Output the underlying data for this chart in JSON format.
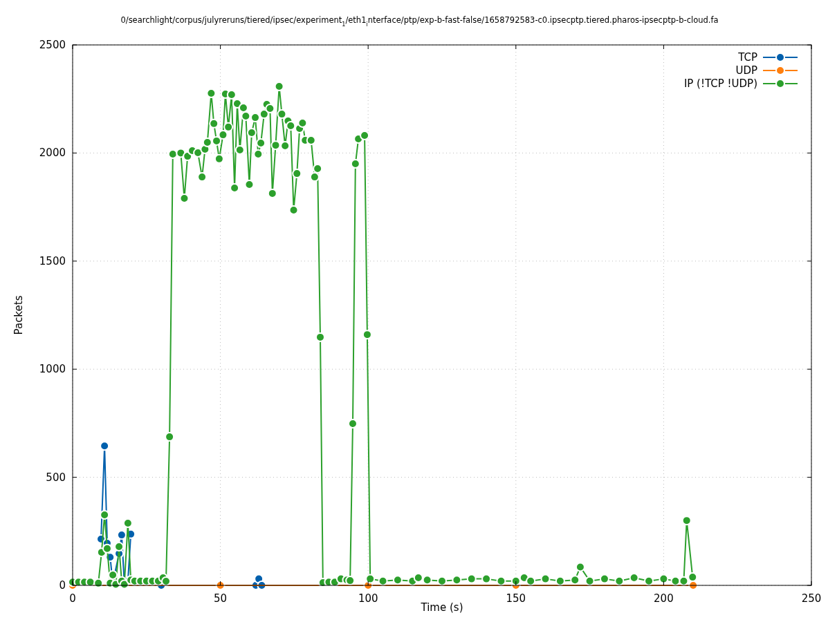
{
  "chart_data": {
    "type": "line",
    "title": "0/searchlight/corpus/julyreruns/tiered/ipsec/experiment$_{1}$/eth1$_{i}$nterface/ptp/exp-b-fast-false/1658792583-c0.ipsecptp.tiered.pharos-ipsecptp-b-cloud.fa",
    "xlabel": "Time (s)",
    "ylabel": "Packets",
    "xlim": [
      0,
      250
    ],
    "xticks": [
      0,
      50,
      100,
      150,
      200,
      250
    ],
    "ylim": [
      0,
      2500
    ],
    "yticks": [
      0,
      500,
      1000,
      1500,
      2000,
      2500
    ],
    "grid": true,
    "legend": "top right",
    "marker": "circle",
    "line_style": "solid",
    "series": [
      {
        "name": "TCP",
        "color": "#0060ad",
        "x": [
          9.6,
          10.8,
          11.7,
          12.7,
          13.6,
          15.7,
          16.6,
          17.5,
          18.7,
          19.7,
          20.7,
          30,
          62,
          63,
          64,
          100
        ],
        "values": [
          214,
          645,
          195,
          130,
          10,
          147,
          233,
          10,
          20,
          237,
          null,
          0,
          0,
          30,
          0,
          0
        ]
      },
      {
        "name": "UDP",
        "color": "#ff7f0e",
        "x": [
          0,
          50,
          100,
          150,
          210
        ],
        "values": [
          0,
          0,
          0,
          0,
          0
        ]
      },
      {
        "name": "IP (!TCP  !UDP)",
        "color": "#2ca02c",
        "x": [
          0,
          2,
          4,
          6,
          8.7,
          9.8,
          10.8,
          11.7,
          12.7,
          13.6,
          14.6,
          15.7,
          16.6,
          17.5,
          18.7,
          19.7,
          21,
          23,
          25,
          27,
          29,
          30.6,
          31.6,
          32.8,
          33.9,
          36.6,
          37.8,
          38.9,
          40.5,
          42.4,
          43.8,
          44.8,
          45.6,
          46.9,
          47.8,
          48.7,
          49.6,
          50.9,
          51.7,
          52.7,
          53.8,
          54.8,
          55.7,
          56.6,
          57.8,
          58.6,
          59.8,
          60.6,
          61.8,
          62.8,
          63.7,
          64.8,
          65.7,
          66.8,
          67.6,
          68.7,
          69.9,
          70.8,
          71.9,
          72.9,
          73.8,
          74.8,
          75.9,
          76.8,
          77.8,
          78.7,
          80.7,
          81.9,
          82.9,
          83.8,
          84.7,
          86.7,
          88.7,
          90.8,
          92.8,
          93.9,
          94.8,
          95.7,
          96.7,
          98.8,
          99.7,
          100.7,
          105,
          110,
          115,
          117,
          120,
          125,
          130,
          135,
          140,
          145,
          150,
          152.8,
          155,
          160,
          165,
          170,
          171.8,
          175,
          180,
          185,
          190,
          195,
          200,
          204,
          206.8,
          207.8,
          209.8
        ],
        "values": [
          15,
          15,
          15,
          15,
          10,
          153,
          326,
          170,
          10,
          48,
          5,
          179,
          20,
          5,
          288,
          25,
          20,
          20,
          20,
          20,
          20,
          35,
          19,
          687,
          1995,
          2000,
          1790,
          1985,
          2011,
          2001,
          1889,
          2017,
          2049,
          2276,
          2136,
          2056,
          1973,
          2084,
          2273,
          2120,
          2270,
          1838,
          2228,
          2014,
          2209,
          2171,
          1854,
          2094,
          2164,
          1995,
          2046,
          2180,
          2225,
          2206,
          1813,
          2036,
          2308,
          2180,
          2033,
          2148,
          2126,
          1736,
          1905,
          2113,
          2139,
          2059,
          2059,
          1889,
          1928,
          1148,
          13,
          15,
          15,
          30,
          25,
          22,
          748,
          1950,
          2065,
          2081,
          1160,
          30,
          20,
          25,
          20,
          35,
          25,
          20,
          25,
          30,
          30,
          20,
          20,
          35,
          20,
          30,
          20,
          25,
          85,
          20,
          30,
          20,
          35,
          20,
          30,
          20,
          20,
          300,
          38
        ]
      }
    ]
  }
}
